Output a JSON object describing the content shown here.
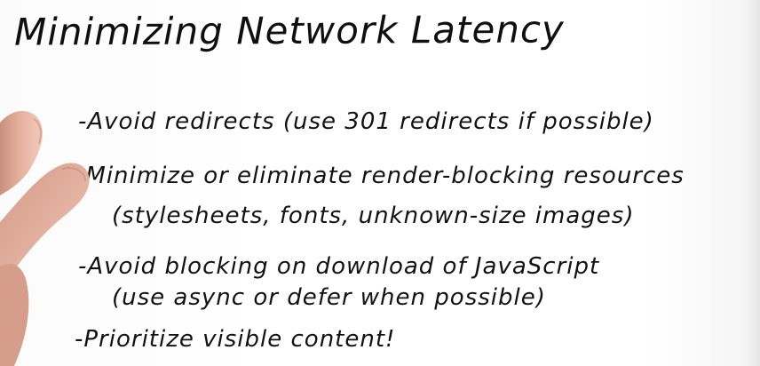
{
  "title": "Minimizing Network Latency",
  "bullets": {
    "line_1": "-Avoid redirects  (use 301 redirects if possible)",
    "line_2": "-Minimize or eliminate render-blocking resources",
    "line_3": "(stylesheets, fonts, unknown-size images)",
    "line_4": "-Avoid blocking on download of JavaScript",
    "line_5": "(use async or defer when possible)",
    "line_6": "-Prioritize visible content!"
  },
  "colors": {
    "ink": "#121212",
    "background": "#ffffff",
    "skin": "#e7b3a0"
  }
}
